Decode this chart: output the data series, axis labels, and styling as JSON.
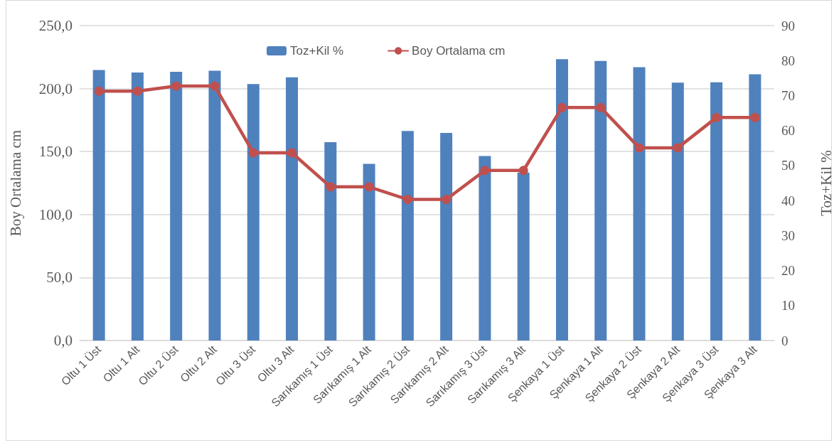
{
  "chart_data": {
    "type": "bar",
    "categories": [
      "Oltu 1 Üst",
      "Oltu 1 Alt",
      "Oltu 2 Üst",
      "Oltu 2 Alt",
      "Oltu 3 Üst",
      "Oltu 3 Alt",
      "Sarıkamış 1 Üst",
      "Sarıkamış 1 Alt",
      "Sarıkamış 2 Üst",
      "Sarıkamış 2 Alt",
      "Sarıkamış 3 Üst",
      "Sarıkamış 3 Alt",
      "Şenkaya 1 Üst",
      "Şenkaya 1 Alt",
      "Şenkaya 2 Üst",
      "Şenkaya 2 Alt",
      "Şenkaya 3 Üst",
      "Şenkaya 3 Alt"
    ],
    "series": [
      {
        "name": "Toz+Kil %",
        "axis": "y2",
        "color": "#4f81bd",
        "values": [
          77.3,
          76.6,
          76.8,
          77.1,
          73.3,
          75.2,
          56.7,
          50.5,
          59.9,
          59.3,
          52.7,
          48.0,
          80.4,
          79.9,
          78.1,
          73.7,
          73.8,
          76.1
        ]
      },
      {
        "name": "Boy Ortalama cm",
        "type": "line",
        "color": "#c0504d",
        "values": [
          198,
          198,
          202,
          202,
          149,
          149,
          122,
          122,
          112,
          112,
          135,
          135,
          185,
          185,
          153,
          153,
          177,
          177
        ]
      }
    ],
    "ylabel": "Boy Ortalama cm",
    "y2label": "Toz+Kil %",
    "ylim": [
      0,
      250
    ],
    "yticks": [
      {
        "value": 0,
        "label": "0,0"
      },
      {
        "value": 50,
        "label": "50,0"
      },
      {
        "value": 100,
        "label": "100,0"
      },
      {
        "value": 150,
        "label": "150,0"
      },
      {
        "value": 200,
        "label": "200,0"
      },
      {
        "value": 250,
        "label": "250,0"
      }
    ],
    "y2lim": [
      0,
      90
    ],
    "y2ticks": [
      0,
      10,
      20,
      30,
      40,
      50,
      60,
      70,
      80,
      90
    ],
    "grid": "y",
    "legend": "top",
    "marker": "circle"
  }
}
